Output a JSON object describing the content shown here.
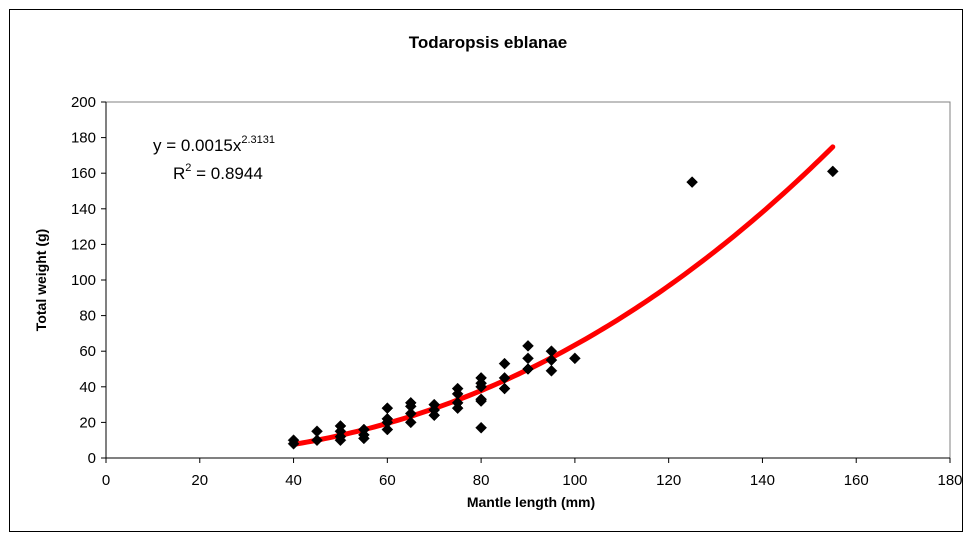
{
  "chart_data": {
    "type": "scatter",
    "title": "Todaropsis eblanae",
    "xlabel": "Mantle length (mm)",
    "ylabel": "Total weight (g)",
    "xlim": [
      0,
      180
    ],
    "ylim": [
      0,
      200
    ],
    "xticks": [
      "0",
      "20",
      "40",
      "60",
      "80",
      "100",
      "120",
      "140",
      "160",
      "180"
    ],
    "yticks": [
      "0",
      "20",
      "40",
      "60",
      "80",
      "100",
      "120",
      "140",
      "160",
      "180",
      "200"
    ],
    "grid": false,
    "legend": "none",
    "series": [
      {
        "marker": "diamond",
        "color": "#000000",
        "points": [
          [
            40,
            10
          ],
          [
            40,
            8
          ],
          [
            45,
            15
          ],
          [
            45,
            10
          ],
          [
            50,
            18
          ],
          [
            50,
            15
          ],
          [
            50,
            12
          ],
          [
            50,
            10
          ],
          [
            55,
            16
          ],
          [
            55,
            13
          ],
          [
            55,
            11
          ],
          [
            60,
            28
          ],
          [
            60,
            22
          ],
          [
            60,
            20
          ],
          [
            60,
            16
          ],
          [
            65,
            31
          ],
          [
            65,
            29
          ],
          [
            65,
            25
          ],
          [
            65,
            20
          ],
          [
            70,
            30
          ],
          [
            70,
            27
          ],
          [
            70,
            24
          ],
          [
            75,
            39
          ],
          [
            75,
            36
          ],
          [
            75,
            31
          ],
          [
            75,
            28
          ],
          [
            80,
            45
          ],
          [
            80,
            42
          ],
          [
            80,
            40
          ],
          [
            80,
            33
          ],
          [
            80,
            32
          ],
          [
            80,
            17
          ],
          [
            85,
            53
          ],
          [
            85,
            45
          ],
          [
            85,
            39
          ],
          [
            90,
            63
          ],
          [
            90,
            56
          ],
          [
            90,
            50
          ],
          [
            95,
            60
          ],
          [
            95,
            55
          ],
          [
            95,
            49
          ],
          [
            100,
            56
          ],
          [
            125,
            155
          ],
          [
            155,
            161
          ]
        ]
      }
    ],
    "trendline": {
      "type": "power",
      "a": 0.0015,
      "b": 2.3131,
      "x_range": [
        40,
        155
      ],
      "color": "#ff0000"
    },
    "annotation": {
      "equation_base": "y = 0.0015x",
      "equation_exponent": "2.3131",
      "r2_base": "R",
      "r2_exponent": "2",
      "r2_value": " = 0.8944"
    }
  }
}
